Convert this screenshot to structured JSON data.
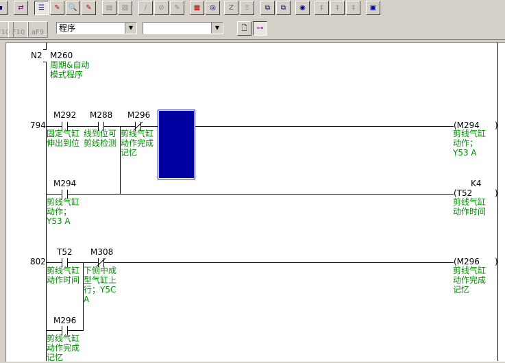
{
  "toolbar": {
    "buttons": [
      "read-plc",
      "ladder-mode",
      "ladder-write",
      "find-device",
      "replace",
      "io-unavailable-1",
      "io-unavailable-2",
      "draw-line",
      "delete-line",
      "edit-line",
      "device-comment",
      "monitor",
      "insert-row",
      "delete-row",
      "open-window",
      "zoom-window",
      "monitor-start",
      "step-1",
      "step-2",
      "step-3",
      "display-screen"
    ],
    "function_keys": [
      "F10",
      "F10",
      "aF9"
    ],
    "program_select": "程序",
    "second_select": ""
  },
  "ladder": {
    "cursor_color": "#0000a0",
    "comment_color": "#008c00",
    "rungs": [
      {
        "step": "N2",
        "device": "M260",
        "comment": [
          "周期&自动",
          "模式程序"
        ]
      },
      {
        "step": "794",
        "contacts": [
          {
            "device": "M292",
            "type": "NO",
            "comment": [
              "固定气缸",
              "伸出到位"
            ]
          },
          {
            "device": "M288",
            "type": "NO",
            "comment": [
              "线到位可",
              "剪线检测"
            ]
          },
          {
            "device": "M296",
            "type": "NC",
            "comment": [
              "剪线气缸",
              "动作完成",
              "记忆"
            ]
          },
          {
            "device": "M294",
            "type": "NO",
            "comment": [
              "剪线气缸",
              "动作；",
              "Y53 A"
            ]
          }
        ],
        "coils": [
          {
            "device": "(M294",
            "close": ")",
            "comment": [
              "剪线气缸",
              "动作；",
              "Y53 A"
            ]
          },
          {
            "device": "(T52",
            "close": ")",
            "setting": "K4",
            "comment": [
              "剪线气缸",
              "动作时间"
            ]
          }
        ]
      },
      {
        "step": "802",
        "contacts": [
          {
            "device": "T52",
            "type": "NO",
            "comment": [
              "剪线气缸",
              "动作时间"
            ]
          },
          {
            "device": "M308",
            "type": "NC",
            "comment": [
              "下侧中成",
              "型气缸上",
              "行；Y5C",
              "A"
            ]
          },
          {
            "device": "M296",
            "type": "NO",
            "comment": [
              "剪线气缸",
              "动作完成",
              "记忆"
            ]
          }
        ],
        "coils": [
          {
            "device": "(M296",
            "close": ")",
            "comment": [
              "剪线气缸",
              "动作完成",
              "记忆"
            ]
          }
        ]
      }
    ]
  }
}
